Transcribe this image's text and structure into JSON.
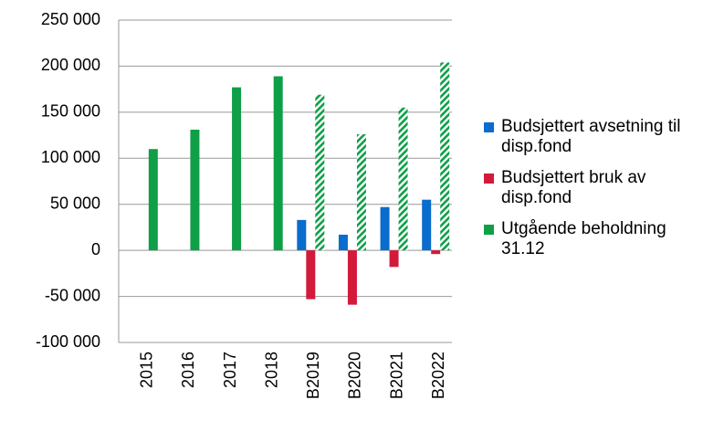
{
  "chart_data": {
    "type": "bar",
    "categories": [
      "2015",
      "2016",
      "2017",
      "2018",
      "B2019",
      "B2020",
      "B2021",
      "B2022"
    ],
    "series": [
      {
        "name": "Budsjettert avsetning til disp.fond",
        "color": "#0a6ccc",
        "values": [
          null,
          null,
          null,
          null,
          33000,
          17000,
          47000,
          55000
        ]
      },
      {
        "name": "Budsjettert bruk av disp.fond",
        "color": "#d21a3a",
        "values": [
          null,
          null,
          null,
          null,
          -53000,
          -59000,
          -18000,
          -4000
        ]
      },
      {
        "name": "Utgående beholdning 31.12",
        "color": "#0e9f47",
        "values": [
          110000,
          131000,
          177000,
          189000,
          169000,
          126000,
          155000,
          204000
        ],
        "hatch": [
          false,
          false,
          false,
          false,
          true,
          true,
          true,
          true
        ]
      }
    ],
    "ylim": [
      -100000,
      250000
    ],
    "yticks": [
      {
        "value": -100000,
        "label": "-100 000"
      },
      {
        "value": -50000,
        "label": "-50 000"
      },
      0,
      {
        "value": 50000,
        "label": "50 000"
      },
      {
        "value": 100000,
        "label": "100 000"
      },
      {
        "value": 150000,
        "label": "150 000"
      },
      {
        "value": 200000,
        "label": "200 000"
      },
      {
        "value": 250000,
        "label": "250 000"
      }
    ],
    "grid": true,
    "legend": "right"
  }
}
